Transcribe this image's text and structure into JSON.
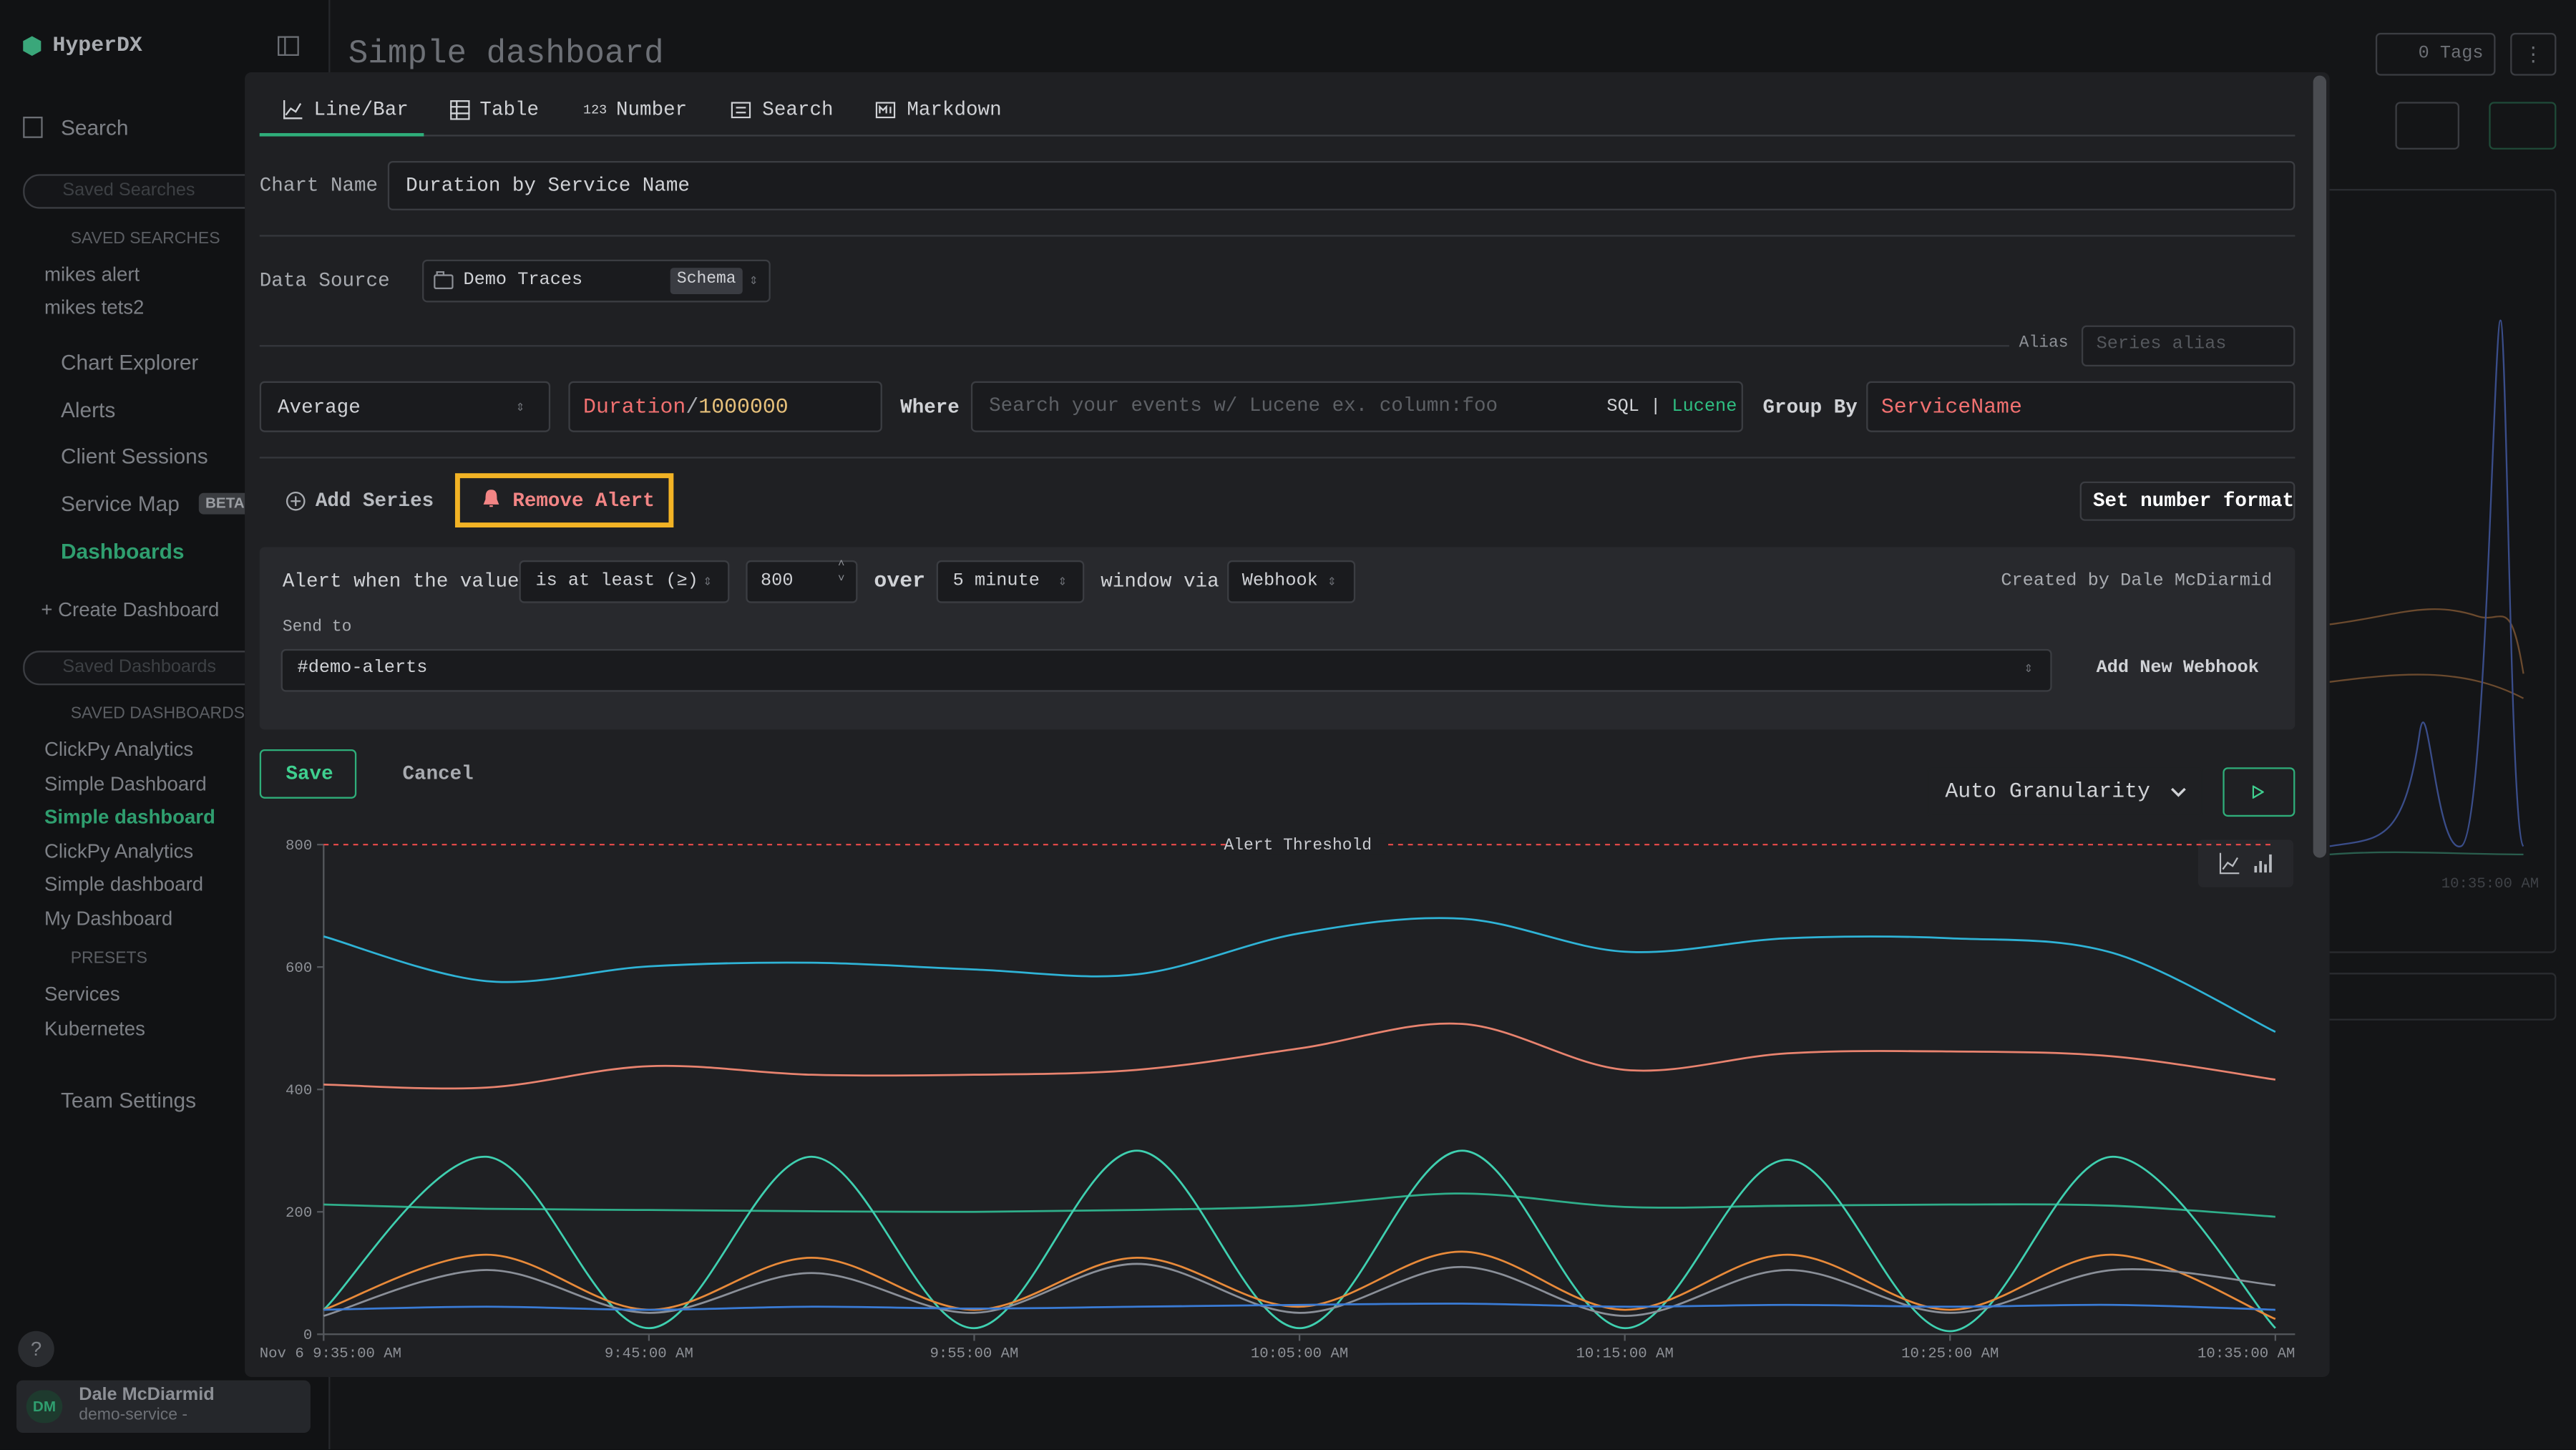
{
  "sidebar": {
    "brand": "HyperDX",
    "search": "Search",
    "saved_searches_placeholder": "Saved Searches",
    "saved_searches_header": "SAVED SEARCHES",
    "saved_searches": [
      "mikes alert",
      "mikes tets2"
    ],
    "nav": [
      "Chart Explorer",
      "Alerts",
      "Client Sessions",
      "Service Map"
    ],
    "beta": "BETA",
    "dashboards": "Dashboards",
    "create_dashboard": "Create Dashboard",
    "saved_dashboards_placeholder": "Saved Dashboards",
    "saved_dashboards_header": "SAVED DASHBOARDS",
    "saved_dashboards": [
      "ClickPy Analytics",
      "Simple Dashboard",
      "Simple dashboard",
      "ClickPy Analytics",
      "Simple dashboard",
      "My Dashboard"
    ],
    "presets_header": "PRESETS",
    "presets": [
      "Services",
      "Kubernetes"
    ],
    "team_settings": "Team Settings",
    "help": "?",
    "user": {
      "initials": "DM",
      "name": "Dale McDiarmid",
      "team": "demo-service -"
    }
  },
  "background": {
    "title": "Simple dashboard",
    "tags": "0 Tags",
    "time_label": "10:35:00 AM"
  },
  "editor": {
    "tabs": [
      "Line/Bar",
      "Table",
      "Number",
      "Search",
      "Markdown"
    ],
    "number_icon": "123",
    "chart_name_label": "Chart Name",
    "chart_name": "Duration by Service Name",
    "data_source_label": "Data Source",
    "data_source": "Demo Traces",
    "schema": "Schema",
    "alias_label": "Alias",
    "alias_placeholder": "Series alias",
    "aggregation": "Average",
    "expression": [
      "Duration",
      "/",
      "1000000"
    ],
    "where_label": "Where",
    "where_placeholder": "Search your events w/ Lucene ex. column:foo",
    "sql": "SQL",
    "separator": "|",
    "lucene": "Lucene",
    "group_by_label": "Group By",
    "group_by": "ServiceName",
    "add_series": "Add Series",
    "remove_alert": "Remove Alert",
    "set_number_format": "Set number format",
    "alert": {
      "when_label": "Alert when the value",
      "condition": "is at least (≥)",
      "threshold": 800,
      "over_label": "over",
      "window": "5 minute",
      "via_label": "window via",
      "channel": "Webhook",
      "created_by": "Created by Dale McDiarmid",
      "send_to_label": "Send to",
      "webhook": "#demo-alerts",
      "add_webhook": "Add New Webhook"
    },
    "save": "Save",
    "cancel": "Cancel",
    "granularity": "Auto Granularity"
  },
  "chart_data": {
    "type": "line",
    "categories": [
      "Nov 6 9:35:00 AM",
      null,
      "9:45:00 AM",
      null,
      "9:55:00 AM",
      null,
      "10:05:00 AM",
      null,
      "10:15:00 AM",
      null,
      "10:25:00 AM",
      null,
      "10:35:00 AM"
    ],
    "ylim": [
      0,
      800
    ],
    "yticks": [
      0,
      200,
      400,
      600,
      800
    ],
    "threshold": {
      "value": 800,
      "label": "Alert Threshold",
      "color": "#e04848"
    },
    "series": [
      {
        "color": "#2fb3d6",
        "values": [
          650,
          577,
          601,
          607,
          596,
          588,
          655,
          679,
          625,
          647,
          647,
          623,
          494
        ]
      },
      {
        "color": "#e8836f",
        "values": [
          408,
          403,
          438,
          424,
          424,
          432,
          467,
          507,
          432,
          459,
          462,
          454,
          416
        ]
      },
      {
        "color": "#2fae8a",
        "values": [
          212,
          205,
          203,
          201,
          200,
          203,
          210,
          230,
          208,
          210,
          212,
          210,
          192
        ]
      },
      {
        "color": "#3fd0b0",
        "values": [
          40,
          290,
          10,
          290,
          10,
          300,
          10,
          300,
          10,
          285,
          5,
          290,
          10
        ]
      },
      {
        "color": "#e88a3a",
        "values": [
          40,
          130,
          40,
          125,
          40,
          125,
          45,
          135,
          40,
          130,
          40,
          130,
          25
        ]
      },
      {
        "color": "#8a8f98",
        "values": [
          30,
          105,
          35,
          100,
          35,
          115,
          35,
          110,
          30,
          105,
          35,
          105,
          80
        ]
      },
      {
        "color": "#3a7bd5",
        "values": [
          40,
          45,
          40,
          45,
          42,
          45,
          48,
          50,
          45,
          48,
          45,
          48,
          40
        ]
      }
    ]
  }
}
